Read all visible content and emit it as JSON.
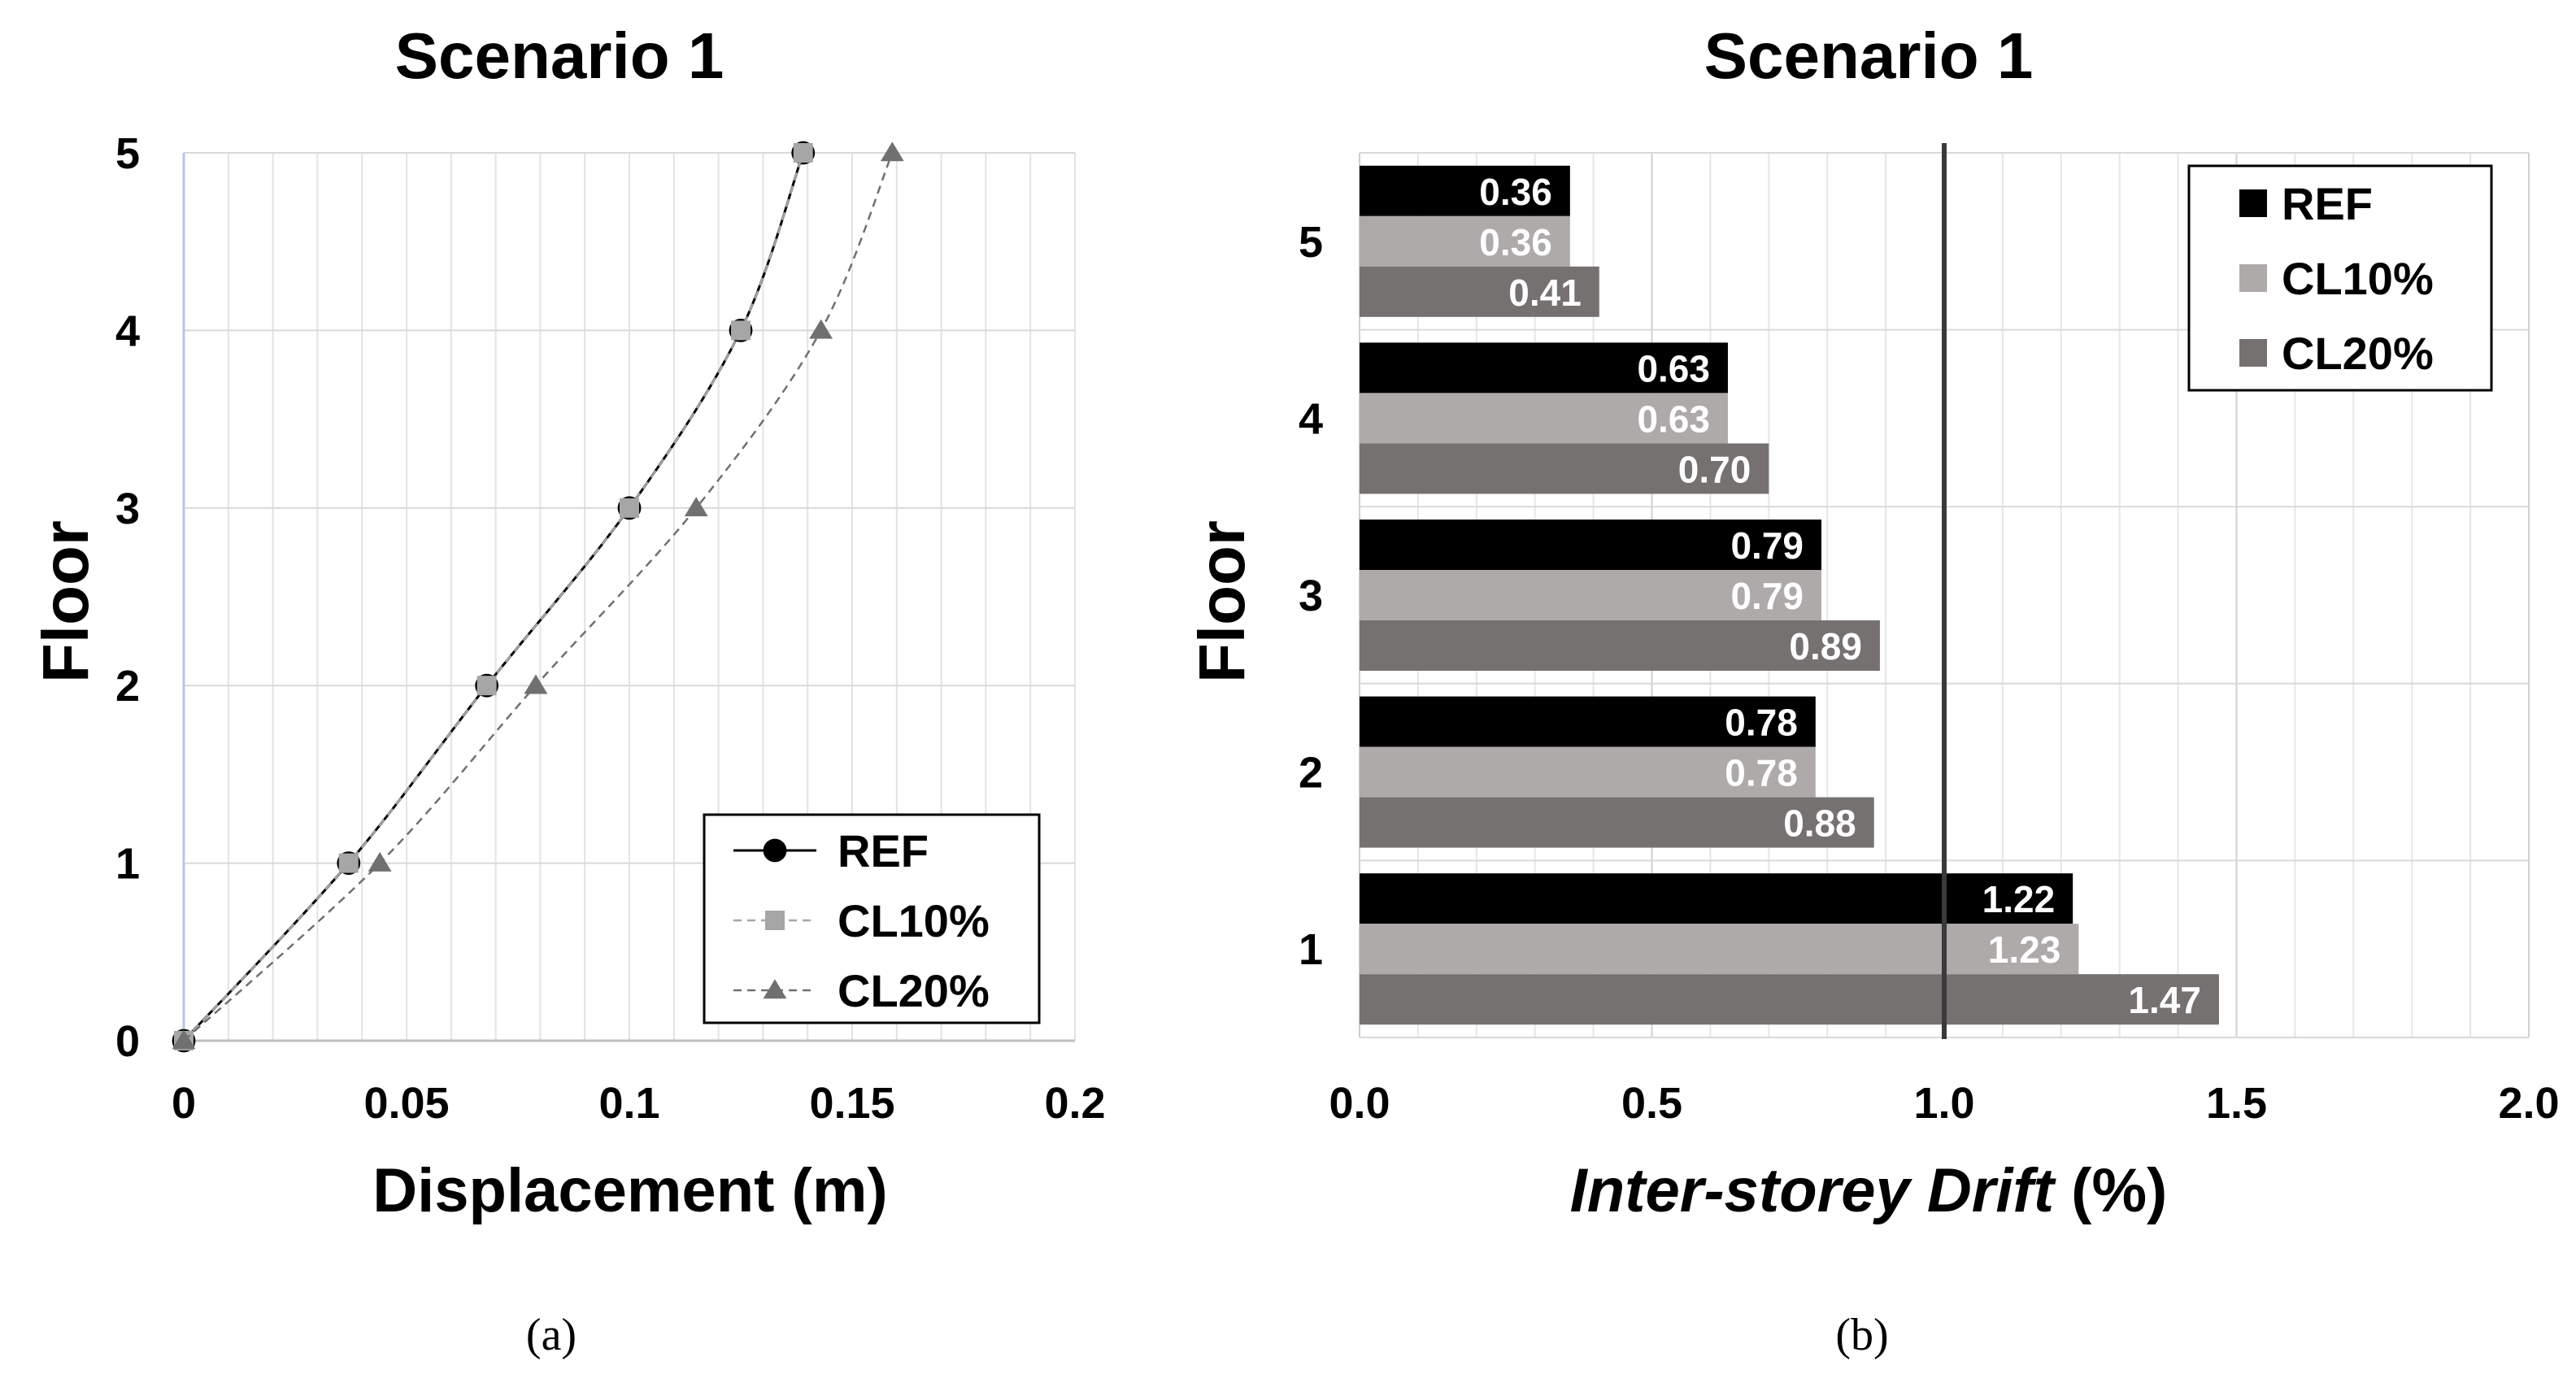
{
  "chart_data": [
    {
      "panel": "a",
      "type": "line",
      "title": "Scenario 1",
      "xlabel": "Displacement (m)",
      "ylabel": "Floor",
      "xlim": [
        0,
        0.2
      ],
      "ylim": [
        0,
        5
      ],
      "x_ticks": [
        "0",
        "0.05",
        "0.1",
        "0.15",
        "0.2"
      ],
      "y_ticks": [
        "0",
        "1",
        "2",
        "3",
        "4",
        "5"
      ],
      "grid": true,
      "legend_position": "bottom-right",
      "series": [
        {
          "name": "REF",
          "color": "#000000",
          "marker": "circle",
          "dashed": false,
          "points": [
            [
              0,
              0
            ],
            [
              0.037,
              1
            ],
            [
              0.068,
              2
            ],
            [
              0.1,
              3
            ],
            [
              0.125,
              4
            ],
            [
              0.139,
              5
            ]
          ]
        },
        {
          "name": "CL10%",
          "color": "#a6a6a6",
          "marker": "square",
          "dashed": true,
          "points": [
            [
              0,
              0
            ],
            [
              0.037,
              1
            ],
            [
              0.068,
              2
            ],
            [
              0.1,
              3
            ],
            [
              0.125,
              4
            ],
            [
              0.139,
              5
            ]
          ]
        },
        {
          "name": "CL20%",
          "color": "#707070",
          "marker": "triangle",
          "dashed": true,
          "points": [
            [
              0,
              0
            ],
            [
              0.044,
              1
            ],
            [
              0.079,
              2
            ],
            [
              0.115,
              3
            ],
            [
              0.143,
              4
            ],
            [
              0.159,
              5
            ]
          ]
        }
      ]
    },
    {
      "panel": "b",
      "type": "bar",
      "orientation": "horizontal",
      "title": "Scenario 1",
      "xlabel_italic": "Inter-storey Drift",
      "xlabel_suffix": " (%)",
      "ylabel": "Floor",
      "xlim": [
        0,
        2.0
      ],
      "x_ticks": [
        "0.0",
        "0.5",
        "1.0",
        "1.5",
        "2.0"
      ],
      "categories": [
        "1",
        "2",
        "3",
        "4",
        "5"
      ],
      "reference_line": 1.0,
      "grid": true,
      "legend_position": "top-right",
      "series": [
        {
          "name": "REF",
          "color": "#000000",
          "values": [
            1.22,
            0.78,
            0.79,
            0.63,
            0.36
          ],
          "labels": [
            "1.22",
            "0.78",
            "0.79",
            "0.63",
            "0.36"
          ]
        },
        {
          "name": "CL10%",
          "color": "#aeaaaa",
          "values": [
            1.23,
            0.78,
            0.79,
            0.63,
            0.36
          ],
          "labels": [
            "1.23",
            "0.78",
            "0.79",
            "0.63",
            "0.36"
          ]
        },
        {
          "name": "CL20%",
          "color": "#767171",
          "values": [
            1.47,
            0.88,
            0.89,
            0.7,
            0.41
          ],
          "labels": [
            "1.47",
            "0.88",
            "0.89",
            "0.70",
            "0.41"
          ]
        }
      ]
    }
  ],
  "captions": {
    "a": "(a)",
    "b": "(b)"
  }
}
